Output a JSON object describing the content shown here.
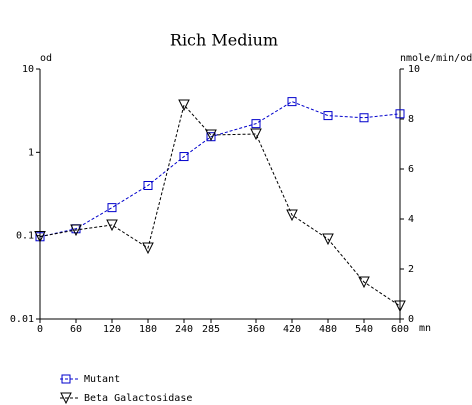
{
  "chart_data": {
    "type": "line",
    "title": "Rich Medium",
    "y_label": "od",
    "y2_label": "nmole/min/od",
    "x_label": "mn",
    "x": [
      0,
      60,
      120,
      180,
      240,
      285,
      360,
      420,
      480,
      540,
      600
    ],
    "xlim": [
      0,
      600
    ],
    "xticks": [
      0,
      60,
      120,
      180,
      240,
      285,
      360,
      420,
      480,
      540,
      600
    ],
    "ylim": [
      0.01,
      10
    ],
    "yticks": [
      0.01,
      0.1,
      1,
      10
    ],
    "ylog": true,
    "y2lim": [
      0,
      10
    ],
    "y2ticks": [
      0,
      2,
      4,
      6,
      8,
      10
    ],
    "legend": "bottom",
    "series": [
      {
        "name": "Mutant",
        "color": "#0000cc",
        "marker": "square",
        "axis": "y",
        "values": [
          0.097,
          0.121,
          0.217,
          0.4,
          0.89,
          1.54,
          2.21,
          4.06,
          2.76,
          2.6,
          2.9
        ]
      },
      {
        "name": "Beta Galactosidase",
        "color": "#000000",
        "marker": "triangle-down",
        "axis": "y2",
        "values": [
          3.3,
          3.56,
          3.76,
          2.84,
          8.56,
          7.36,
          7.4,
          4.16,
          3.2,
          1.48,
          0.52
        ]
      }
    ]
  }
}
